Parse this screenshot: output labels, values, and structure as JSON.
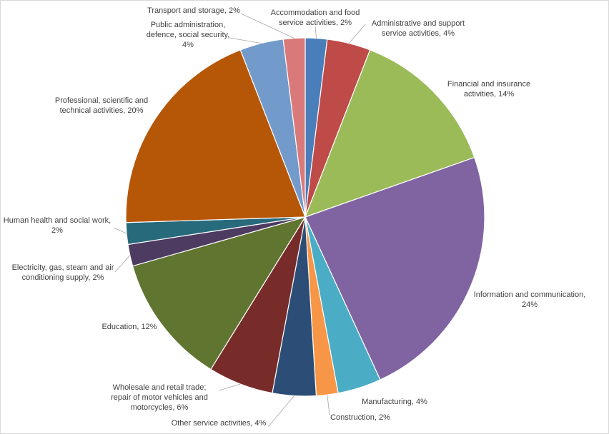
{
  "chart_data": {
    "type": "pie",
    "title": "",
    "start_angle_deg": 0,
    "direction": "clockwise",
    "legend": "none",
    "slices": [
      {
        "label": "Accommodation and food service activities",
        "display": [
          "Accommodation and food",
          "service activities, 2%"
        ],
        "value": 2,
        "color": "#4a7ebb"
      },
      {
        "label": "Administrative and support service activities",
        "display": [
          "Administrative and support",
          "service activities, 4%"
        ],
        "value": 4,
        "color": "#be4b48"
      },
      {
        "label": "Financial and insurance activities",
        "display": [
          "Financial and insurance",
          "activities, 14%"
        ],
        "value": 14,
        "color": "#9bbb59"
      },
      {
        "label": "Information and communication",
        "display": [
          "Information and communication,",
          "24%"
        ],
        "value": 24,
        "color": "#8064a2"
      },
      {
        "label": "Manufacturing",
        "display": [
          "Manufacturing, 4%"
        ],
        "value": 4,
        "color": "#4bacc6"
      },
      {
        "label": "Construction",
        "display": [
          "Construction, 2%"
        ],
        "value": 2,
        "color": "#f79646"
      },
      {
        "label": "Other service activities",
        "display": [
          "Other service activities, 4%"
        ],
        "value": 4,
        "color": "#2c4d75"
      },
      {
        "label": "Wholesale and retail trade; repair of motor vehicles and motorcycles",
        "display": [
          "Wholesale and retail trade;",
          "repair of motor vehicles and",
          "motorcycles, 6%"
        ],
        "value": 6,
        "color": "#772c2a"
      },
      {
        "label": "Education",
        "display": [
          "Education, 12%"
        ],
        "value": 12,
        "color": "#5f7530"
      },
      {
        "label": "Electricity, gas, steam and air conditioning supply",
        "display": [
          "Electricity, gas, steam and air",
          "conditioning supply, 2%"
        ],
        "value": 2,
        "color": "#4d3b62"
      },
      {
        "label": "Human health and social work",
        "display": [
          "Human health and social work,",
          "2%"
        ],
        "value": 2,
        "color": "#276a7c"
      },
      {
        "label": "Professional, scientific and technical activities",
        "display": [
          "Professional, scientific and",
          "technical activities, 20%"
        ],
        "value": 20,
        "color": "#b65708"
      },
      {
        "label": "Public administration, defence, social security",
        "display": [
          "Public administration,",
          "defence, social security,",
          "4%"
        ],
        "value": 4,
        "color": "#729aca"
      },
      {
        "label": "Transport and storage",
        "display": [
          "Transport and storage, 2%"
        ],
        "value": 2,
        "color": "#d9797a"
      }
    ]
  }
}
